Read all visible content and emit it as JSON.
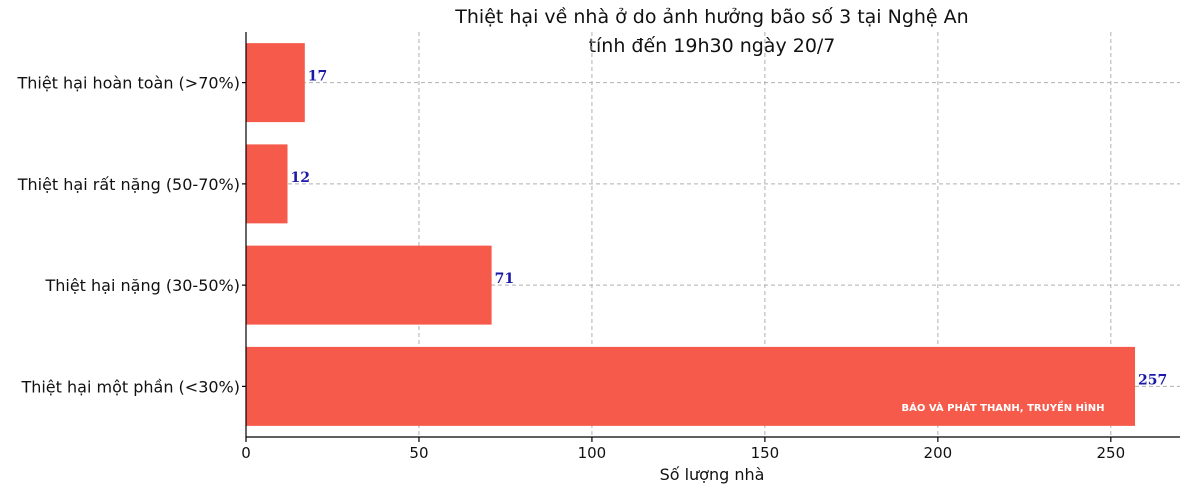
{
  "chart_data": {
    "type": "bar",
    "orientation": "horizontal",
    "title": "Thiệt hại về nhà ở do ảnh hưởng bão số 3 tại Nghệ An",
    "subtitle": "tính đến 19h30 ngày 20/7",
    "xlabel": "Số lượng nhà",
    "ylabel": "",
    "categories": [
      "Thiệt hại hoàn toàn (>70%)",
      "Thiệt hại rất nặng (50-70%)",
      "Thiệt hại nặng (30-50%)",
      "Thiệt hại một phần (<30%)"
    ],
    "values": [
      17,
      12,
      71,
      257
    ],
    "data_labels": [
      "17",
      "12",
      "71",
      "257"
    ],
    "xlim": [
      0,
      270
    ],
    "xticks": [
      0,
      50,
      100,
      150,
      200,
      250
    ],
    "grid": true,
    "bar_color": "#f55a4a",
    "label_color": "#1a1aa6"
  },
  "watermark": {
    "text": "BÁO VÀ PHÁT THANH, TRUYỀN HÌNH"
  }
}
